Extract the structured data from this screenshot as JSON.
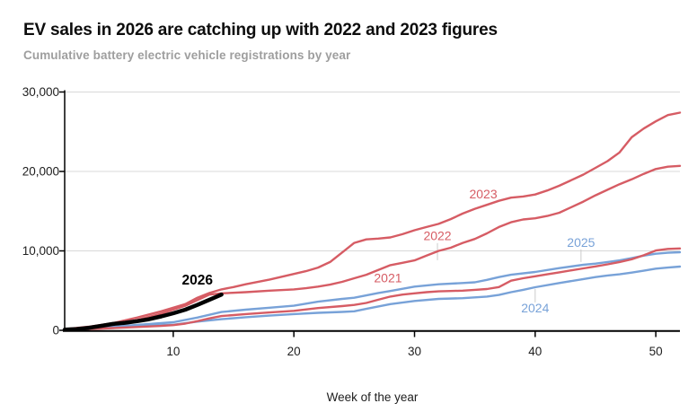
{
  "header": {
    "title": "EV sales in 2026 are catching up with 2022 and 2023 figures",
    "subtitle": "Cumulative battery electric vehicle registrations by year"
  },
  "chart_data": {
    "type": "line",
    "title": "EV sales in 2026 are catching up with 2022 and 2023 figures",
    "subtitle": "Cumulative battery electric vehicle registrations by year",
    "xlabel": "Week of the year",
    "ylabel": "",
    "x_range": [
      1,
      52
    ],
    "ylim": [
      0,
      30000
    ],
    "grid": "horizontal",
    "legend_position": "inline-labels",
    "x_ticks": [
      10,
      20,
      30,
      40,
      50
    ],
    "y_ticks": [
      {
        "value": 0,
        "label": "0"
      },
      {
        "value": 10000,
        "label": "10,000"
      },
      {
        "value": 20000,
        "label": "20,000"
      },
      {
        "value": 30000,
        "label": "30,000"
      }
    ],
    "colors": {
      "past_red": "#d65c64",
      "recent_blue": "#78a2d8",
      "current_black": "#000000",
      "gridline": "#d8d8d8",
      "axis": "#000000",
      "tick_text": "#202020"
    },
    "series": [
      {
        "name": "2021",
        "color": "#d65c64",
        "width": 2.4,
        "label": {
          "week": 27.8,
          "value": 6600,
          "bold": false,
          "size": 14
        },
        "points": [
          [
            1,
            50
          ],
          [
            3,
            150
          ],
          [
            5,
            280
          ],
          [
            7,
            420
          ],
          [
            9,
            550
          ],
          [
            10,
            650
          ],
          [
            11,
            850
          ],
          [
            12,
            1150
          ],
          [
            13,
            1500
          ],
          [
            14,
            1800
          ],
          [
            16,
            2050
          ],
          [
            18,
            2250
          ],
          [
            20,
            2450
          ],
          [
            22,
            2800
          ],
          [
            24,
            3050
          ],
          [
            25,
            3200
          ],
          [
            26,
            3450
          ],
          [
            27,
            3850
          ],
          [
            28,
            4250
          ],
          [
            29,
            4500
          ],
          [
            30,
            4650
          ],
          [
            31,
            4800
          ],
          [
            32,
            4900
          ],
          [
            33,
            4950
          ],
          [
            34,
            5000
          ],
          [
            35,
            5100
          ],
          [
            36,
            5200
          ],
          [
            37,
            5450
          ],
          [
            38,
            6250
          ],
          [
            39,
            6550
          ],
          [
            40,
            6800
          ],
          [
            41,
            7050
          ],
          [
            42,
            7300
          ],
          [
            43,
            7550
          ],
          [
            44,
            7800
          ],
          [
            45,
            8050
          ],
          [
            46,
            8300
          ],
          [
            47,
            8600
          ],
          [
            48,
            8950
          ],
          [
            49,
            9450
          ],
          [
            50,
            10050
          ],
          [
            51,
            10250
          ],
          [
            52,
            10300
          ]
        ]
      },
      {
        "name": "2022",
        "color": "#d65c64",
        "width": 2.4,
        "label": {
          "week": 31.9,
          "value": 11900,
          "bold": false,
          "size": 14
        },
        "points": [
          [
            1,
            100
          ],
          [
            3,
            350
          ],
          [
            5,
            700
          ],
          [
            7,
            1300
          ],
          [
            9,
            2100
          ],
          [
            10,
            2600
          ],
          [
            11,
            3100
          ],
          [
            12,
            3800
          ],
          [
            13,
            4500
          ],
          [
            14,
            4650
          ],
          [
            16,
            4800
          ],
          [
            18,
            5000
          ],
          [
            20,
            5150
          ],
          [
            21,
            5300
          ],
          [
            22,
            5500
          ],
          [
            23,
            5750
          ],
          [
            24,
            6100
          ],
          [
            25,
            6550
          ],
          [
            26,
            7000
          ],
          [
            27,
            7600
          ],
          [
            28,
            8200
          ],
          [
            29,
            8500
          ],
          [
            30,
            8800
          ],
          [
            31,
            9400
          ],
          [
            32,
            10000
          ],
          [
            33,
            10400
          ],
          [
            34,
            11000
          ],
          [
            35,
            11500
          ],
          [
            36,
            12200
          ],
          [
            37,
            13000
          ],
          [
            38,
            13600
          ],
          [
            39,
            13950
          ],
          [
            40,
            14100
          ],
          [
            41,
            14400
          ],
          [
            42,
            14800
          ],
          [
            43,
            15500
          ],
          [
            44,
            16200
          ],
          [
            45,
            17000
          ],
          [
            46,
            17700
          ],
          [
            47,
            18400
          ],
          [
            48,
            19000
          ],
          [
            49,
            19700
          ],
          [
            50,
            20300
          ],
          [
            51,
            20600
          ],
          [
            52,
            20700
          ]
        ]
      },
      {
        "name": "2023",
        "color": "#d65c64",
        "width": 2.4,
        "label": {
          "week": 35.7,
          "value": 17200,
          "bold": false,
          "size": 14
        },
        "points": [
          [
            1,
            150
          ],
          [
            3,
            450
          ],
          [
            5,
            900
          ],
          [
            7,
            1600
          ],
          [
            9,
            2400
          ],
          [
            10,
            2850
          ],
          [
            11,
            3300
          ],
          [
            12,
            4100
          ],
          [
            13,
            4700
          ],
          [
            14,
            5150
          ],
          [
            15,
            5450
          ],
          [
            16,
            5800
          ],
          [
            18,
            6400
          ],
          [
            20,
            7100
          ],
          [
            21,
            7450
          ],
          [
            22,
            7900
          ],
          [
            23,
            8600
          ],
          [
            24,
            9800
          ],
          [
            25,
            11000
          ],
          [
            26,
            11450
          ],
          [
            27,
            11550
          ],
          [
            28,
            11700
          ],
          [
            29,
            12100
          ],
          [
            30,
            12600
          ],
          [
            31,
            13000
          ],
          [
            32,
            13400
          ],
          [
            33,
            14000
          ],
          [
            34,
            14700
          ],
          [
            35,
            15300
          ],
          [
            36,
            15800
          ],
          [
            37,
            16300
          ],
          [
            38,
            16700
          ],
          [
            39,
            16850
          ],
          [
            40,
            17100
          ],
          [
            41,
            17600
          ],
          [
            42,
            18200
          ],
          [
            43,
            18900
          ],
          [
            44,
            19600
          ],
          [
            45,
            20450
          ],
          [
            46,
            21300
          ],
          [
            47,
            22400
          ],
          [
            48,
            24300
          ],
          [
            49,
            25400
          ],
          [
            50,
            26300
          ],
          [
            51,
            27100
          ],
          [
            52,
            27400
          ]
        ]
      },
      {
        "name": "2024",
        "color": "#78a2d8",
        "width": 2.4,
        "label": {
          "week": 40.0,
          "value": 2800,
          "bold": false,
          "size": 14
        },
        "points": [
          [
            1,
            50
          ],
          [
            3,
            180
          ],
          [
            5,
            300
          ],
          [
            7,
            500
          ],
          [
            9,
            640
          ],
          [
            10,
            700
          ],
          [
            12,
            1100
          ],
          [
            14,
            1400
          ],
          [
            16,
            1650
          ],
          [
            18,
            1850
          ],
          [
            20,
            2050
          ],
          [
            22,
            2200
          ],
          [
            24,
            2320
          ],
          [
            25,
            2400
          ],
          [
            26,
            2700
          ],
          [
            27,
            3000
          ],
          [
            28,
            3300
          ],
          [
            30,
            3700
          ],
          [
            32,
            3960
          ],
          [
            34,
            4050
          ],
          [
            35,
            4150
          ],
          [
            36,
            4250
          ],
          [
            37,
            4450
          ],
          [
            38,
            4800
          ],
          [
            39,
            5100
          ],
          [
            40,
            5420
          ],
          [
            42,
            5950
          ],
          [
            44,
            6450
          ],
          [
            45,
            6700
          ],
          [
            46,
            6900
          ],
          [
            47,
            7050
          ],
          [
            48,
            7270
          ],
          [
            49,
            7500
          ],
          [
            50,
            7760
          ],
          [
            51,
            7900
          ],
          [
            52,
            8020
          ]
        ]
      },
      {
        "name": "2025",
        "color": "#78a2d8",
        "width": 2.4,
        "label": {
          "week": 43.8,
          "value": 11050,
          "bold": false,
          "size": 14
        },
        "points": [
          [
            1,
            100
          ],
          [
            3,
            250
          ],
          [
            5,
            430
          ],
          [
            7,
            680
          ],
          [
            9,
            900
          ],
          [
            10,
            1020
          ],
          [
            12,
            1600
          ],
          [
            14,
            2300
          ],
          [
            16,
            2600
          ],
          [
            18,
            2850
          ],
          [
            20,
            3100
          ],
          [
            22,
            3600
          ],
          [
            24,
            3950
          ],
          [
            25,
            4100
          ],
          [
            26,
            4400
          ],
          [
            27,
            4700
          ],
          [
            28,
            4950
          ],
          [
            30,
            5500
          ],
          [
            32,
            5800
          ],
          [
            34,
            5950
          ],
          [
            35,
            6050
          ],
          [
            36,
            6350
          ],
          [
            37,
            6700
          ],
          [
            38,
            7000
          ],
          [
            40,
            7350
          ],
          [
            42,
            7830
          ],
          [
            44,
            8250
          ],
          [
            45,
            8400
          ],
          [
            46,
            8600
          ],
          [
            47,
            8800
          ],
          [
            48,
            9100
          ],
          [
            49,
            9400
          ],
          [
            50,
            9640
          ],
          [
            51,
            9760
          ],
          [
            52,
            9830
          ]
        ]
      },
      {
        "name": "2026",
        "color": "#000000",
        "width": 4.5,
        "label": {
          "week": 12.0,
          "value": 6300,
          "bold": true,
          "size": 15.5
        },
        "points": [
          [
            1,
            80
          ],
          [
            2,
            160
          ],
          [
            3,
            320
          ],
          [
            4,
            550
          ],
          [
            5,
            800
          ],
          [
            6,
            950
          ],
          [
            7,
            1150
          ],
          [
            8,
            1400
          ],
          [
            9,
            1750
          ],
          [
            10,
            2150
          ],
          [
            11,
            2600
          ],
          [
            12,
            3200
          ],
          [
            13,
            3850
          ],
          [
            14,
            4500
          ]
        ]
      }
    ],
    "label_connectors": [
      {
        "week": 31.9,
        "v1": 8830,
        "v2": 10980
      },
      {
        "week": 40.0,
        "v1": 3510,
        "v2": 5210
      },
      {
        "week": 43.8,
        "v1": 8600,
        "v2": 10190
      }
    ]
  }
}
